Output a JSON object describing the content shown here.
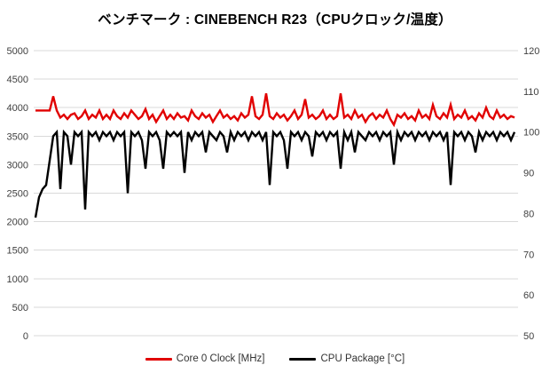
{
  "title": "ベンチマーク : CINEBENCH R23（CPUクロック/温度）",
  "colors": {
    "background": "#ffffff",
    "gridline": "#d9d9d9",
    "tick_label": "#404040",
    "title": "#000000",
    "clock_series": "#e10000",
    "temp_series": "#000000"
  },
  "chart_data": {
    "type": "line",
    "title": "ベンチマーク : CINEBENCH R23（CPUクロック/温度）",
    "xlabel": "",
    "ylabel_left": "",
    "ylabel_right": "",
    "grid": true,
    "legend_position": "bottom",
    "x_axis": {
      "visible": false,
      "note": "time axis, no tick labels shown"
    },
    "left_axis": {
      "range": [
        0,
        5000
      ],
      "step": 500,
      "ticks": [
        5000,
        4500,
        4000,
        3500,
        3000,
        2500,
        2000,
        1500,
        1000,
        500,
        0
      ]
    },
    "right_axis": {
      "range": [
        50,
        120
      ],
      "step": 10,
      "ticks": [
        120,
        110,
        100,
        90,
        80,
        70,
        60,
        50
      ]
    },
    "series": [
      {
        "name": "Core 0 Clock [MHz]",
        "axis": "left",
        "color": "#e10000",
        "values": [
          3950,
          3950,
          3950,
          3950,
          3950,
          4200,
          3950,
          3825,
          3875,
          3800,
          3875,
          3900,
          3800,
          3850,
          3950,
          3800,
          3875,
          3825,
          3950,
          3800,
          3875,
          3800,
          3950,
          3850,
          3800,
          3900,
          3825,
          3950,
          3875,
          3800,
          3850,
          3975,
          3800,
          3875,
          3750,
          3850,
          3950,
          3800,
          3875,
          3800,
          3900,
          3825,
          3850,
          3775,
          3950,
          3850,
          3800,
          3900,
          3825,
          3875,
          3750,
          3850,
          3950,
          3825,
          3875,
          3800,
          3850,
          3775,
          3900,
          3825,
          3875,
          4200,
          3850,
          3800,
          3875,
          4250,
          3850,
          3800,
          3900,
          3825,
          3875,
          3775,
          3850,
          3950,
          3800,
          3875,
          4150,
          3825,
          3875,
          3800,
          3850,
          3950,
          3800,
          3875,
          3800,
          3850,
          4250,
          3825,
          3875,
          3800,
          3950,
          3825,
          3875,
          3750,
          3850,
          3900,
          3800,
          3875,
          3825,
          3950,
          3800,
          3700,
          3875,
          3825,
          3900,
          3800,
          3850,
          3775,
          3950,
          3825,
          3875,
          3800,
          4050,
          3850,
          3800,
          3900,
          3825,
          4050,
          3800,
          3875,
          3825,
          3950,
          3800,
          3850,
          3775,
          3900,
          3825,
          4000,
          3850,
          3800,
          3950,
          3825,
          3875,
          3800,
          3850,
          3825
        ]
      },
      {
        "name": "CPU Package [°C]",
        "axis": "right",
        "color": "#000000",
        "values": [
          79,
          84,
          86,
          87,
          93,
          99,
          100,
          86,
          100,
          99,
          92,
          100,
          99,
          100,
          81,
          100,
          99,
          100,
          98,
          100,
          99,
          100,
          98,
          100,
          99,
          100,
          85,
          100,
          99,
          100,
          98,
          91,
          100,
          99,
          100,
          98,
          91,
          100,
          99,
          100,
          99,
          100,
          90,
          100,
          98,
          100,
          99,
          100,
          95,
          100,
          99,
          98,
          100,
          99,
          95,
          100,
          98,
          100,
          99,
          100,
          98,
          100,
          99,
          100,
          98,
          100,
          87,
          100,
          99,
          100,
          98,
          91,
          100,
          99,
          100,
          98,
          100,
          99,
          94,
          100,
          99,
          100,
          98,
          100,
          99,
          100,
          91,
          100,
          98,
          100,
          95,
          100,
          99,
          98,
          100,
          99,
          100,
          98,
          100,
          99,
          100,
          92,
          100,
          98,
          100,
          99,
          100,
          98,
          100,
          99,
          100,
          98,
          100,
          99,
          100,
          98,
          100,
          87,
          100,
          99,
          100,
          98,
          100,
          99,
          95,
          100,
          98,
          100,
          99,
          100,
          98,
          100,
          99,
          100,
          98,
          100
        ]
      }
    ]
  },
  "legend": {
    "items": [
      {
        "label": "Core 0 Clock [MHz]"
      },
      {
        "label": "CPU Package [°C]"
      }
    ]
  }
}
